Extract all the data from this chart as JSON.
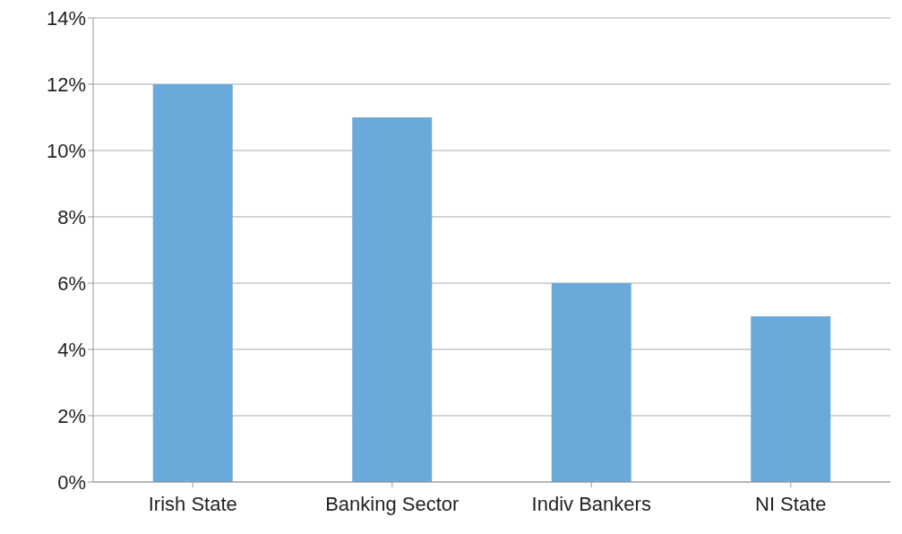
{
  "chart_data": {
    "type": "bar",
    "categories": [
      "Irish State",
      "Banking Sector",
      "Indiv Bankers",
      "NI State"
    ],
    "values": [
      12,
      11,
      6,
      5
    ],
    "color": "#6aaadb",
    "ylim": [
      0,
      14
    ],
    "yticks": [
      {
        "value": 0,
        "label": "0%"
      },
      {
        "value": 2,
        "label": "2%"
      },
      {
        "value": 4,
        "label": "4%"
      },
      {
        "value": 6,
        "label": "6%"
      },
      {
        "value": 8,
        "label": "8%"
      },
      {
        "value": 10,
        "label": "10%"
      },
      {
        "value": 12,
        "label": "12%"
      },
      {
        "value": 14,
        "label": "14%"
      }
    ],
    "grid": "y",
    "legend": false
  }
}
